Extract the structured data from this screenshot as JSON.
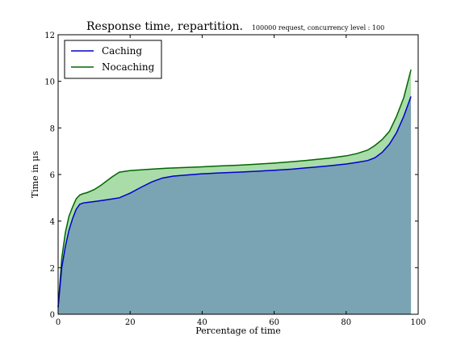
{
  "chart_data": {
    "type": "area",
    "title": "Response time, repartition.",
    "subtitle": "100000 request, concurrency level : 100",
    "xlabel": "Percentage of time",
    "ylabel": "Time in μs",
    "xlim": [
      0,
      100
    ],
    "ylim": [
      0,
      12
    ],
    "xticks": [
      "0",
      "20",
      "40",
      "60",
      "80",
      "100"
    ],
    "yticks": [
      "0",
      "2",
      "4",
      "6",
      "8",
      "10",
      "12"
    ],
    "grid": false,
    "legend_position": "top-left",
    "series": [
      {
        "name": "Caching",
        "color": "#0000cc",
        "fill": "#7aa3b3",
        "x": [
          0,
          1,
          2,
          3,
          4,
          5,
          6,
          7,
          8,
          10,
          12,
          15,
          17,
          20,
          23,
          26,
          29,
          32,
          35,
          40,
          45,
          50,
          55,
          60,
          65,
          70,
          75,
          80,
          83,
          86,
          88,
          90,
          92,
          94,
          96,
          98
        ],
        "y": [
          0.3,
          2.0,
          2.9,
          3.6,
          4.1,
          4.5,
          4.72,
          4.78,
          4.8,
          4.84,
          4.88,
          4.95,
          5.0,
          5.2,
          5.45,
          5.68,
          5.85,
          5.93,
          5.97,
          6.03,
          6.07,
          6.1,
          6.14,
          6.18,
          6.23,
          6.3,
          6.37,
          6.45,
          6.52,
          6.6,
          6.72,
          6.95,
          7.3,
          7.8,
          8.5,
          9.35
        ]
      },
      {
        "name": "Nocaching",
        "color": "#006600",
        "fill": "#a9dca9",
        "x": [
          0,
          1,
          2,
          3,
          4,
          5,
          6,
          7,
          8,
          10,
          12,
          15,
          17,
          20,
          25,
          30,
          35,
          40,
          45,
          50,
          55,
          60,
          65,
          70,
          75,
          80,
          83,
          86,
          88,
          90,
          92,
          94,
          96,
          98
        ],
        "y": [
          0.3,
          2.4,
          3.5,
          4.2,
          4.6,
          4.95,
          5.12,
          5.18,
          5.22,
          5.35,
          5.55,
          5.9,
          6.1,
          6.17,
          6.22,
          6.27,
          6.3,
          6.33,
          6.37,
          6.4,
          6.44,
          6.49,
          6.55,
          6.62,
          6.7,
          6.8,
          6.9,
          7.05,
          7.25,
          7.5,
          7.85,
          8.5,
          9.3,
          10.5
        ]
      }
    ]
  }
}
